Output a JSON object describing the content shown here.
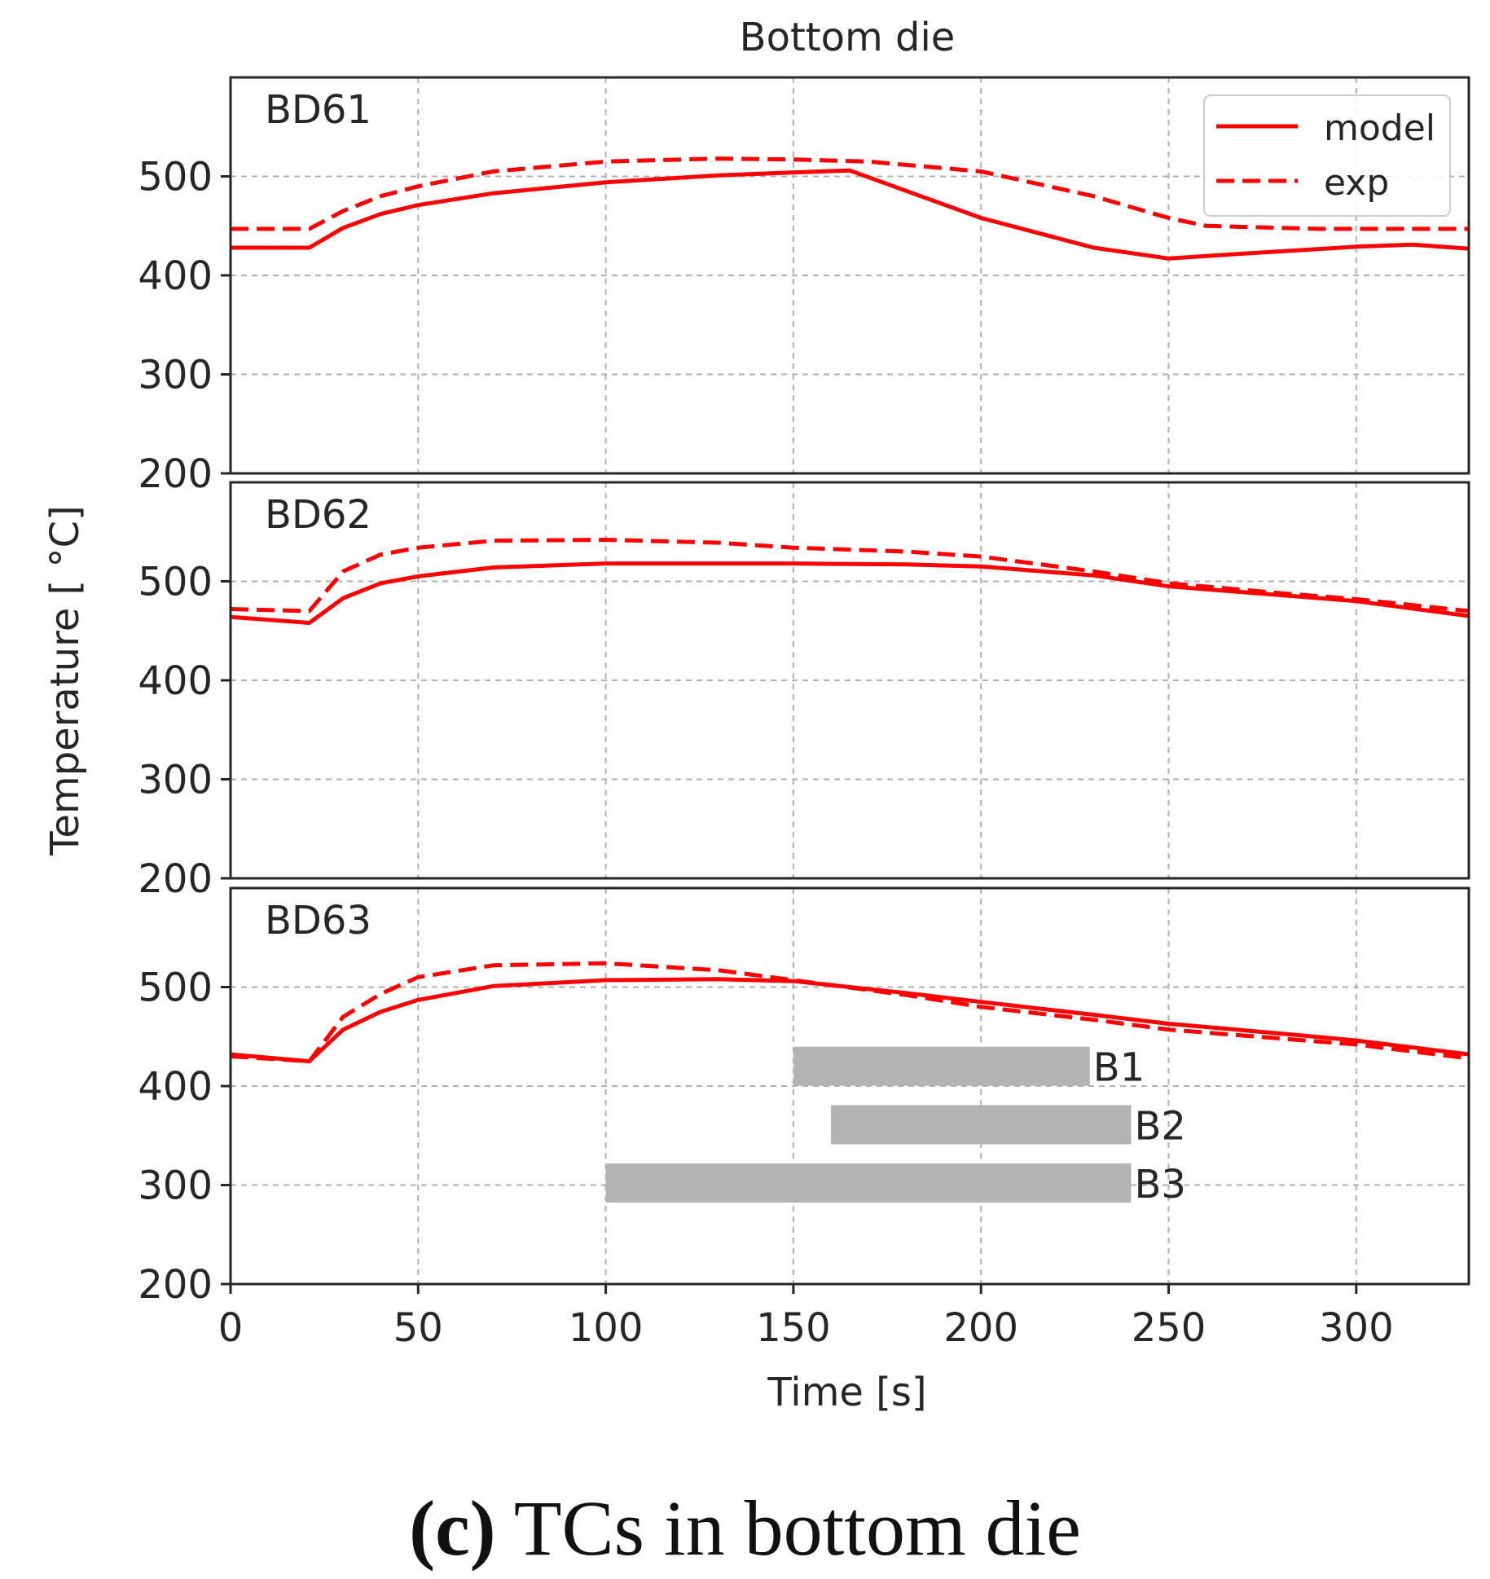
{
  "chart_data": {
    "type": "line",
    "title": "Bottom die",
    "xlabel": "Time [s]",
    "ylabel": "Temperature [$^\\circ$C]",
    "ylabel_display": "Temperature [ °C]",
    "xlim": [
      0,
      330
    ],
    "ylim": [
      200,
      600
    ],
    "xticks": [
      "0",
      "50",
      "100",
      "150",
      "200",
      "250",
      "300"
    ],
    "yticks": [
      "200",
      "300",
      "400",
      "500"
    ],
    "legend": {
      "position": "top-right",
      "entries": [
        "model",
        "exp"
      ]
    },
    "grid": true,
    "colors": {
      "line": "#ff0000",
      "bar": "#b3b3b3",
      "axis": "#262626",
      "grid": "#b0b0b0"
    },
    "panels": [
      {
        "name": "BD61",
        "series": [
          {
            "name": "model",
            "style": "solid",
            "x": [
              0,
              21,
              30,
              40,
              50,
              70,
              100,
              130,
              150,
              165,
              200,
              230,
              250,
              270,
              300,
              315,
              330
            ],
            "y": [
              428,
              428,
              448,
              462,
              471,
              483,
              494,
              501,
              504,
              506,
              458,
              428,
              417,
              422,
              429,
              431,
              427
            ]
          },
          {
            "name": "exp",
            "style": "dashed",
            "x": [
              0,
              21,
              30,
              40,
              50,
              70,
              100,
              130,
              150,
              170,
              200,
              230,
              250,
              260,
              290,
              330
            ],
            "y": [
              447,
              447,
              465,
              480,
              490,
              505,
              515,
              518,
              517,
              515,
              505,
              480,
              458,
              450,
              447,
              447
            ]
          }
        ]
      },
      {
        "name": "BD62",
        "series": [
          {
            "name": "model",
            "style": "solid",
            "x": [
              0,
              21,
              30,
              40,
              50,
              70,
              100,
              130,
              150,
              180,
              200,
              230,
              250,
              280,
              300,
              330
            ],
            "y": [
              464,
              458,
              483,
              498,
              505,
              514,
              518,
              518,
              518,
              517,
              515,
              506,
              495,
              486,
              480,
              465
            ]
          },
          {
            "name": "exp",
            "style": "dashed",
            "x": [
              0,
              21,
              30,
              40,
              50,
              70,
              100,
              130,
              150,
              180,
              200,
              230,
              250,
              280,
              300,
              330
            ],
            "y": [
              472,
              470,
              510,
              527,
              534,
              541,
              542,
              539,
              534,
              530,
              525,
              510,
              498,
              488,
              482,
              470
            ]
          }
        ]
      },
      {
        "name": "BD63",
        "series": [
          {
            "name": "model",
            "style": "solid",
            "x": [
              0,
              21,
              30,
              40,
              50,
              70,
              100,
              130,
              150,
              180,
              200,
              230,
              250,
              280,
              300,
              330
            ],
            "y": [
              432,
              425,
              457,
              475,
              487,
              501,
              507,
              508,
              506,
              494,
              485,
              472,
              463,
              453,
              446,
              432
            ]
          },
          {
            "name": "exp",
            "style": "dashed",
            "x": [
              0,
              21,
              30,
              40,
              50,
              70,
              100,
              130,
              150,
              180,
              200,
              230,
              250,
              280,
              300,
              330
            ],
            "y": [
              430,
              425,
              470,
              493,
              510,
              522,
              524,
              517,
              507,
              492,
              480,
              467,
              457,
              448,
              442,
              428
            ]
          }
        ],
        "bars": [
          {
            "label": "B1",
            "x_start": 150,
            "x_end": 229,
            "y_center": 420
          },
          {
            "label": "B2",
            "x_start": 160,
            "x_end": 240,
            "y_center": 361
          },
          {
            "label": "B3",
            "x_start": 100,
            "x_end": 240,
            "y_center": 302
          }
        ]
      }
    ]
  },
  "caption": {
    "label": "(c)",
    "text": "TCs in bottom die"
  }
}
